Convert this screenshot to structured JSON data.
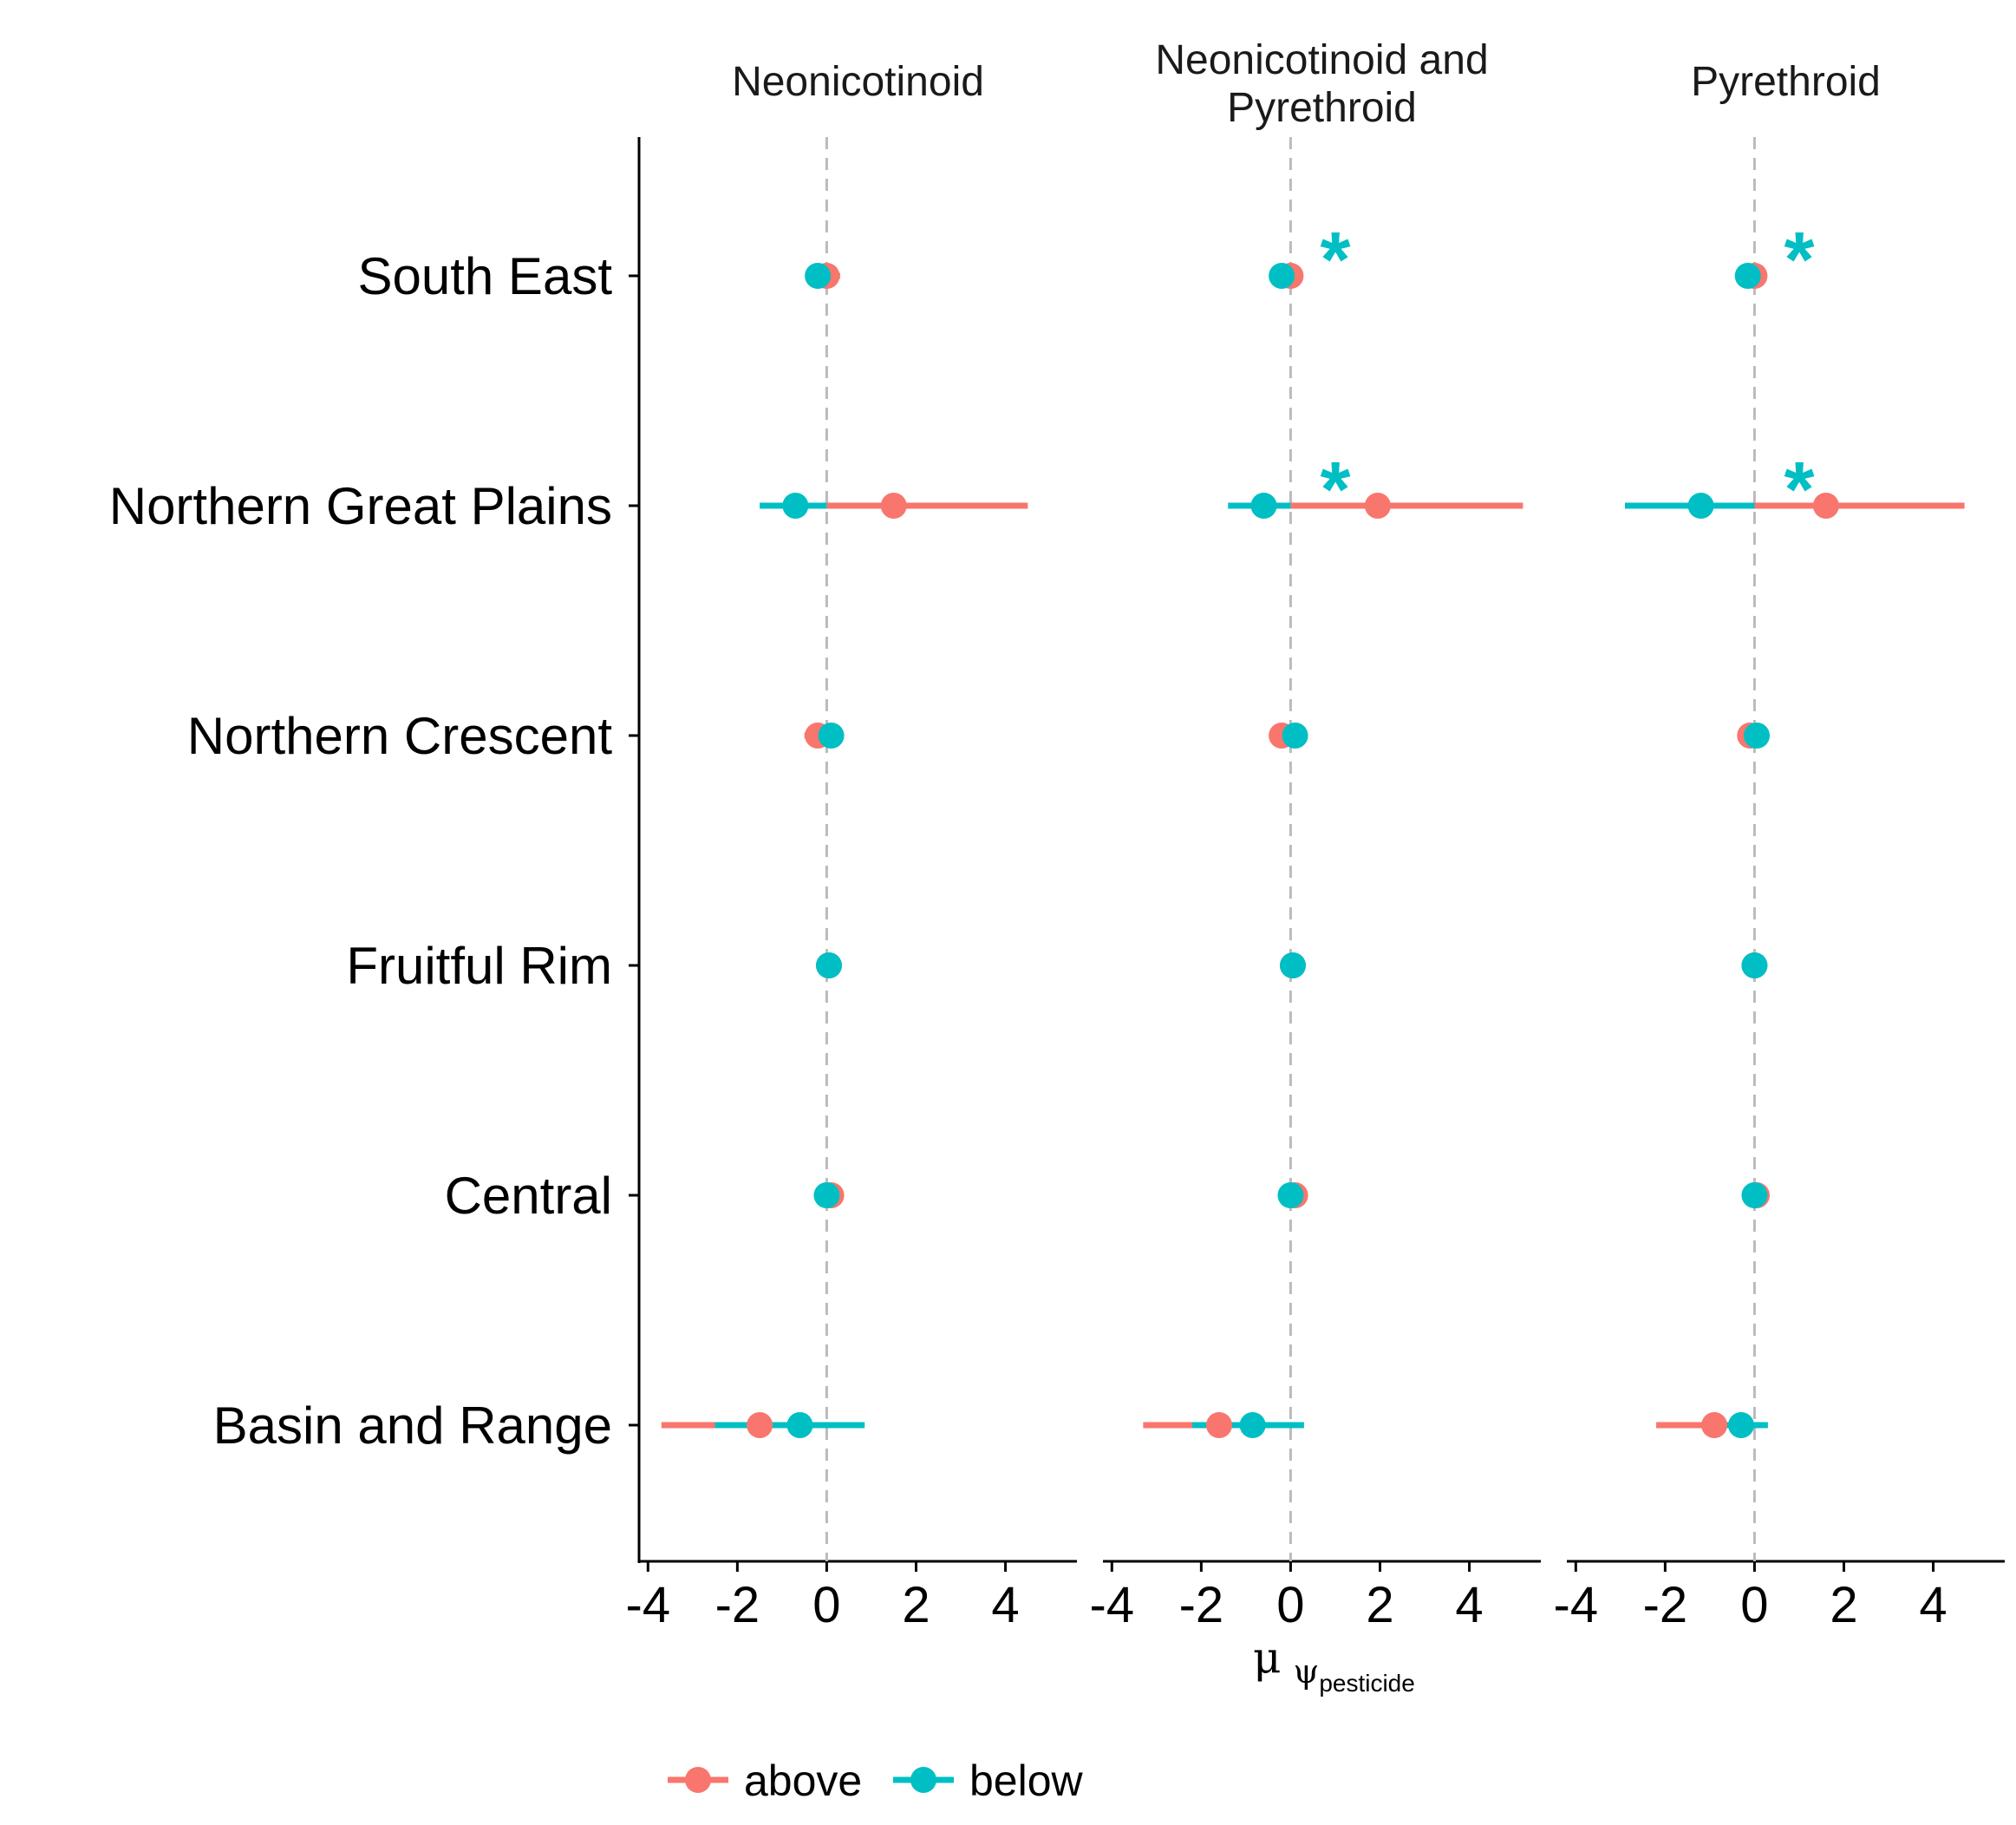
{
  "chart_data": {
    "type": "scatter",
    "subtype": "faceted point-range (dot and whisker) plot",
    "facets": [
      "Neonicotinoid",
      "Neonicotinoid and Pyrethroid",
      "Pyrethroid"
    ],
    "facet_title_lines": [
      [
        "Neonicotinoid"
      ],
      [
        "Neonicotinoid and",
        "Pyrethroid"
      ],
      [
        "Pyrethroid"
      ]
    ],
    "categories": [
      "South East",
      "Northern Great Plains",
      "Northern Crescent",
      "Fruitful Rim",
      "Central",
      "Basin and Range"
    ],
    "x_axis": {
      "label_main": "μ",
      "label_sub": "ψ",
      "label_subsub": "pesticide",
      "ticks": [
        "-4",
        "-2",
        "0",
        "2",
        "4"
      ],
      "tick_values": [
        -4,
        -2,
        0,
        2,
        4
      ],
      "xlim": [
        -4.2,
        5.6
      ],
      "reference_line": 0
    },
    "legend": {
      "position": "bottom",
      "entries": [
        "above",
        "below"
      ]
    },
    "colors": {
      "above": "#F8766D",
      "below": "#00BFC4",
      "refline": "#BBBBBB",
      "axis": "#000000"
    },
    "significance_marker": "*",
    "series": [
      {
        "name": "above",
        "facets": [
          [
            {
              "category": "South East",
              "est": 0.0,
              "lo": -0.1,
              "hi": 0.3
            },
            {
              "category": "Northern Great Plains",
              "est": 1.5,
              "lo": 0.0,
              "hi": 4.5
            },
            {
              "category": "Northern Crescent",
              "est": -0.2,
              "lo": -0.5,
              "hi": 0.1
            },
            {
              "category": "Fruitful Rim",
              "est": 0.05,
              "lo": -0.1,
              "hi": 0.2
            },
            {
              "category": "Central",
              "est": 0.1,
              "lo": -0.1,
              "hi": 0.3
            },
            {
              "category": "Basin and Range",
              "est": -1.5,
              "lo": -3.7,
              "hi": 0.0
            }
          ],
          [
            {
              "category": "South East",
              "est": 0.0,
              "lo": -0.1,
              "hi": 0.1
            },
            {
              "category": "Northern Great Plains",
              "est": 1.95,
              "lo": 0.0,
              "hi": 5.2
            },
            {
              "category": "Northern Crescent",
              "est": -0.2,
              "lo": -0.3,
              "hi": 0.0
            },
            {
              "category": "Fruitful Rim",
              "est": 0.05,
              "lo": -0.1,
              "hi": 0.1
            },
            {
              "category": "Central",
              "est": 0.1,
              "lo": -0.1,
              "hi": 0.3
            },
            {
              "category": "Basin and Range",
              "est": -1.6,
              "lo": -3.3,
              "hi": -0.2
            }
          ],
          [
            {
              "category": "South East",
              "est": 0.0,
              "lo": -0.3,
              "hi": 0.1
            },
            {
              "category": "Northern Great Plains",
              "est": 1.6,
              "lo": -0.3,
              "hi": 4.7
            },
            {
              "category": "Northern Crescent",
              "est": -0.1,
              "lo": -0.3,
              "hi": 0.0
            },
            {
              "category": "Fruitful Rim",
              "est": 0.0,
              "lo": -0.1,
              "hi": 0.1
            },
            {
              "category": "Central",
              "est": 0.05,
              "lo": -0.1,
              "hi": 0.3
            },
            {
              "category": "Basin and Range",
              "est": -0.9,
              "lo": -2.2,
              "hi": 0.0
            }
          ]
        ]
      },
      {
        "name": "below",
        "facets": [
          [
            {
              "category": "South East",
              "est": -0.2,
              "lo": -0.4,
              "hi": 0.0
            },
            {
              "category": "Northern Great Plains",
              "est": -0.7,
              "lo": -1.5,
              "hi": 0.0
            },
            {
              "category": "Northern Crescent",
              "est": 0.1,
              "lo": 0.0,
              "hi": 0.2
            },
            {
              "category": "Fruitful Rim",
              "est": 0.05,
              "lo": -0.1,
              "hi": 0.2
            },
            {
              "category": "Central",
              "est": 0.0,
              "lo": -0.1,
              "hi": 0.1
            },
            {
              "category": "Basin and Range",
              "est": -0.6,
              "lo": -2.5,
              "hi": 0.85
            }
          ],
          [
            {
              "category": "South East",
              "est": -0.2,
              "lo": -0.4,
              "hi": 0.0
            },
            {
              "category": "Northern Great Plains",
              "est": -0.6,
              "lo": -1.4,
              "hi": 0.0
            },
            {
              "category": "Northern Crescent",
              "est": 0.1,
              "lo": 0.0,
              "hi": 0.2
            },
            {
              "category": "Fruitful Rim",
              "est": 0.05,
              "lo": -0.1,
              "hi": 0.1
            },
            {
              "category": "Central",
              "est": 0.0,
              "lo": -0.1,
              "hi": 0.1
            },
            {
              "category": "Basin and Range",
              "est": -0.85,
              "lo": -2.2,
              "hi": 0.3
            }
          ],
          [
            {
              "category": "South East",
              "est": -0.15,
              "lo": -0.3,
              "hi": 0.0
            },
            {
              "category": "Northern Great Plains",
              "est": -1.2,
              "lo": -2.9,
              "hi": 0.0
            },
            {
              "category": "Northern Crescent",
              "est": 0.05,
              "lo": -0.1,
              "hi": 0.1
            },
            {
              "category": "Fruitful Rim",
              "est": 0.0,
              "lo": -0.1,
              "hi": 0.1
            },
            {
              "category": "Central",
              "est": 0.0,
              "lo": -0.1,
              "hi": 0.1
            },
            {
              "category": "Basin and Range",
              "est": -0.3,
              "lo": -1.0,
              "hi": 0.3
            }
          ]
        ]
      }
    ],
    "significance": [
      {
        "facet": "Neonicotinoid and Pyrethroid",
        "category": "South East",
        "x": 1.0
      },
      {
        "facet": "Neonicotinoid and Pyrethroid",
        "category": "Northern Great Plains",
        "x": 1.0
      },
      {
        "facet": "Pyrethroid",
        "category": "South East",
        "x": 1.0
      },
      {
        "facet": "Pyrethroid",
        "category": "Northern Great Plains",
        "x": 1.0
      }
    ]
  }
}
